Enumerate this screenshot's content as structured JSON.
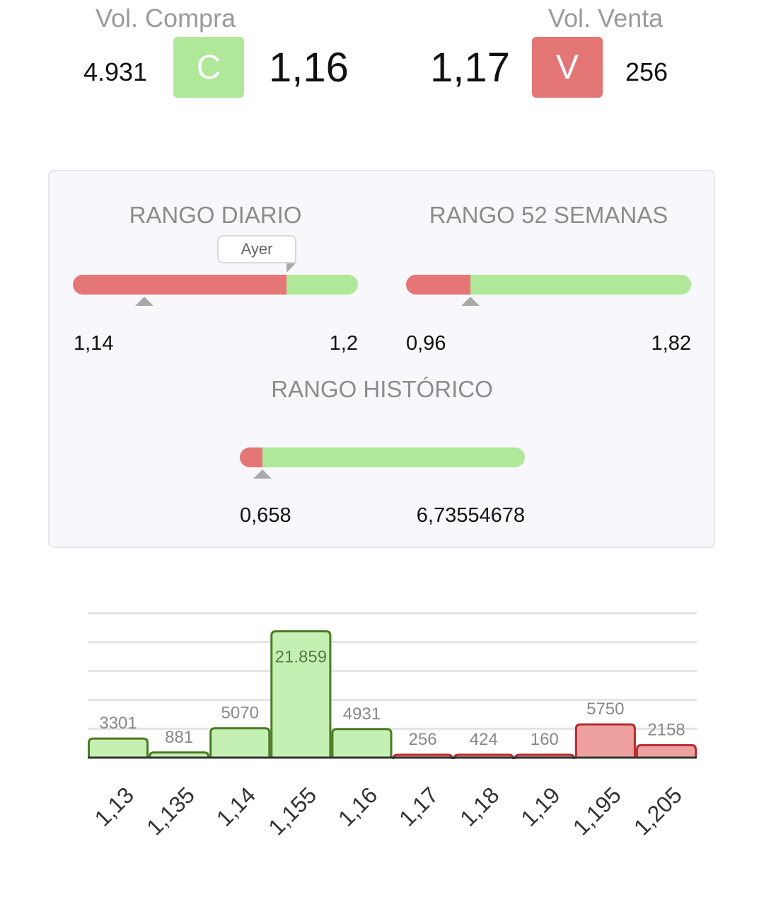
{
  "quote": {
    "buy_volume_label": "Vol. Compra",
    "sell_volume_label": "Vol. Venta",
    "buy_volume": "4.931",
    "sell_volume": "256",
    "buy_price": "1,16",
    "sell_price": "1,17",
    "buy_button": "C",
    "sell_button": "V",
    "buy_color": "#aee898",
    "sell_color": "#e47676"
  },
  "ranges": {
    "daily": {
      "title": "RANGO DIARIO",
      "low": "1,14",
      "high": "1,2",
      "marker_label": "Ayer",
      "current_fraction": 0.25,
      "split_fraction": 0.75,
      "yesterday_fraction": 0.75
    },
    "weeks52": {
      "title": "RANGO 52 SEMANAS",
      "low": "0,96",
      "high": "1,82",
      "current_fraction": 0.225,
      "split_fraction": 0.225
    },
    "historic": {
      "title": "RANGO HISTÓRICO",
      "low": "0,658",
      "high": "6,73554678",
      "current_fraction": 0.08,
      "split_fraction": 0.08
    }
  },
  "chart_data": {
    "type": "bar",
    "title": "",
    "xlabel": "",
    "ylabel": "",
    "categories": [
      "1,13",
      "1,135",
      "1,14",
      "1,155",
      "1,16",
      "1,17",
      "1,18",
      "1,19",
      "1,195",
      "1,205"
    ],
    "values": [
      3301,
      881,
      5070,
      21859,
      4931,
      256,
      424,
      160,
      5750,
      2158
    ],
    "value_labels": [
      "3301",
      "881",
      "5070",
      "21.859",
      "4931",
      "256",
      "424",
      "160",
      "5750",
      "2158"
    ],
    "bar_side": [
      "buy",
      "buy",
      "buy",
      "buy",
      "buy",
      "sell",
      "sell",
      "sell",
      "sell",
      "sell"
    ],
    "ylim": [
      0,
      25000
    ],
    "grid": true,
    "colors": {
      "buy_fill": "#c5f0b4",
      "buy_stroke": "#4d7a24",
      "buy_label": "#5a7a4a",
      "sell_fill": "#eea0a0",
      "sell_stroke": "#b52c2c",
      "sell_label": "#888888"
    }
  }
}
